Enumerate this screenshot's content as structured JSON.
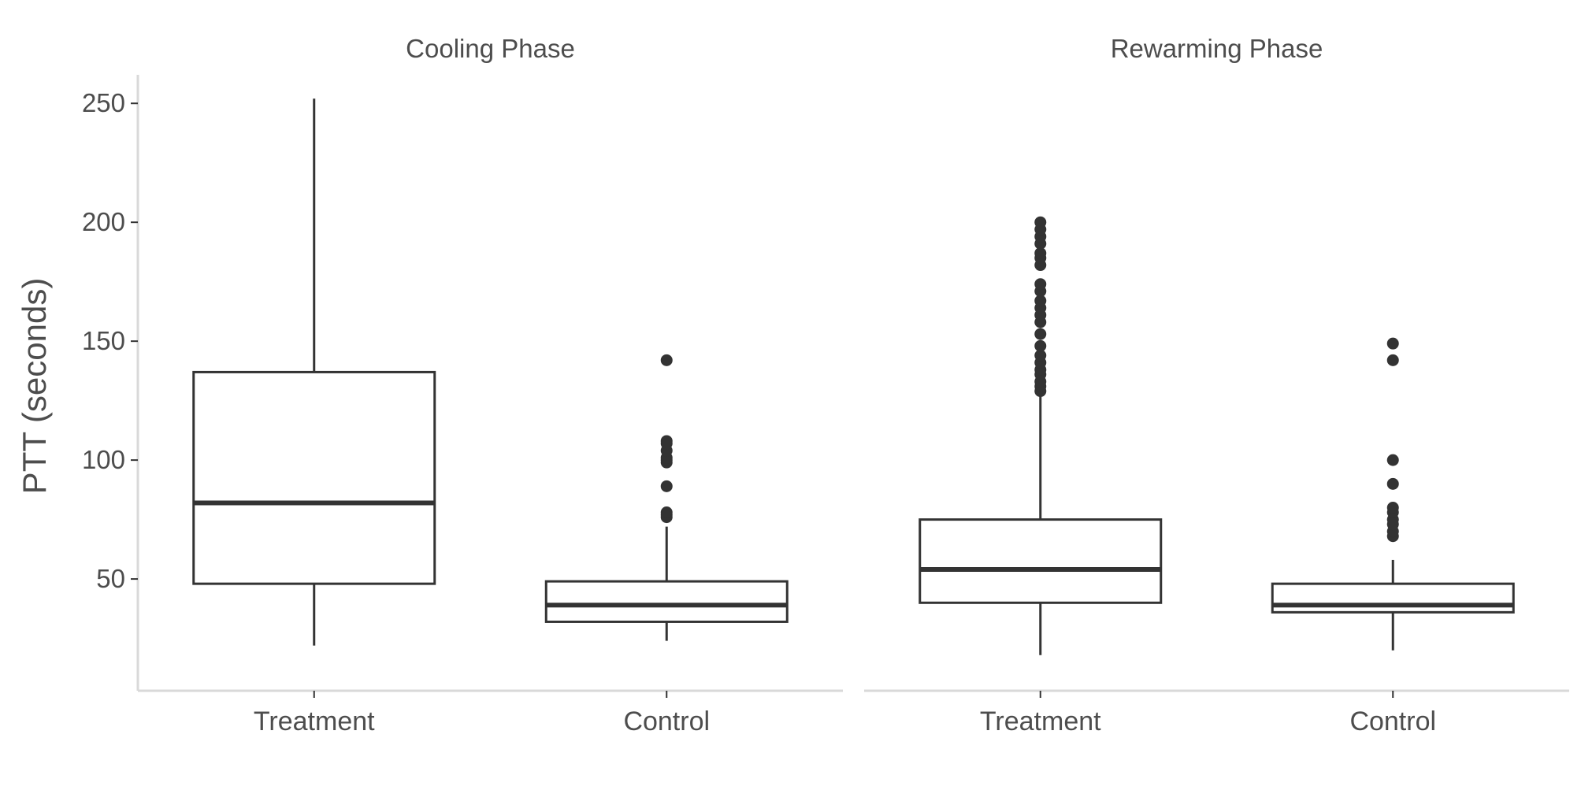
{
  "chart_data": {
    "type": "boxplot",
    "ylabel": "PTT (seconds)",
    "xlabel": "",
    "ylim": [
      3,
      262
    ],
    "yticks": [
      50,
      100,
      150,
      200,
      250
    ],
    "grid": false,
    "legend": "none",
    "colors": {
      "box_stroke": "#333333",
      "outlier": "#333333",
      "axis_line": "#d9d9d9",
      "text": "#4d4d4d"
    },
    "panels": [
      {
        "title": "Cooling Phase",
        "categories": [
          "Treatment",
          "Control"
        ],
        "boxes": [
          {
            "category": "Treatment",
            "min": 22,
            "q1": 48,
            "median": 82,
            "q3": 137,
            "max": 252,
            "outliers": []
          },
          {
            "category": "Control",
            "min": 24,
            "q1": 32,
            "median": 39,
            "q3": 49,
            "max": 72,
            "outliers": [
              76,
              77,
              78,
              89,
              99,
              100,
              101,
              104,
              107,
              108,
              142
            ]
          }
        ]
      },
      {
        "title": "Rewarming Phase",
        "categories": [
          "Treatment",
          "Control"
        ],
        "boxes": [
          {
            "category": "Treatment",
            "min": 18,
            "q1": 40,
            "median": 54,
            "q3": 75,
            "max": 128,
            "outliers": [
              129,
              131,
              133,
              136,
              138,
              141,
              144,
              148,
              153,
              158,
              161,
              164,
              167,
              171,
              174,
              182,
              185,
              187,
              191,
              194,
              197,
              200
            ]
          },
          {
            "category": "Control",
            "min": 20,
            "q1": 36,
            "median": 39,
            "q3": 48,
            "max": 58,
            "outliers": [
              68,
              70,
              73,
              75,
              78,
              80,
              90,
              100,
              142,
              149
            ]
          }
        ]
      }
    ]
  }
}
